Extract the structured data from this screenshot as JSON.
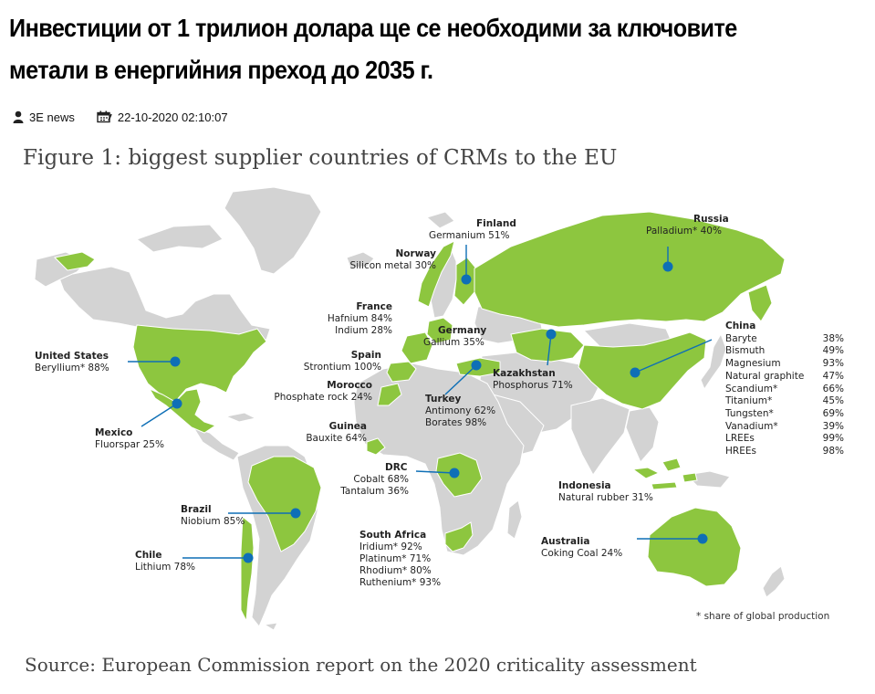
{
  "article": {
    "headline": "Инвестиции от 1 трилион долара ще се необходими за ключовите метали в енергийния преход до 2035 г.",
    "author": "3E news",
    "date": "22-10-2020 02:10:07",
    "author_icon": "user-icon",
    "date_icon": "calendar-icon"
  },
  "figure": {
    "title": "Figure 1: biggest supplier countries of CRMs to the EU",
    "source": "Source: European Commission report on the 2020 criticality assessment",
    "footnote": "* share of global production",
    "colors": {
      "supplier": "#8cc63f",
      "other_land": "#d0d0d0",
      "marker": "#0e6fb6",
      "leader": "#0e6fb6"
    },
    "suppliers": [
      {
        "id": "finland",
        "country": "Finland",
        "items": [
          "Germanium 51%"
        ]
      },
      {
        "id": "russia",
        "country": "Russia",
        "items": [
          "Palladium* 40%"
        ]
      },
      {
        "id": "norway",
        "country": "Norway",
        "items": [
          "Silicon metal 30%"
        ]
      },
      {
        "id": "france",
        "country": "France",
        "items": [
          "Hafnium 84%",
          "Indium 28%"
        ]
      },
      {
        "id": "germany",
        "country": "Germany",
        "items": [
          "Gallium 35%"
        ]
      },
      {
        "id": "spain",
        "country": "Spain",
        "items": [
          "Strontium 100%"
        ]
      },
      {
        "id": "morocco",
        "country": "Morocco",
        "items": [
          "Phosphate rock 24%"
        ]
      },
      {
        "id": "guinea",
        "country": "Guinea",
        "items": [
          "Bauxite 64%"
        ]
      },
      {
        "id": "kazakhstan",
        "country": "Kazakhstan",
        "items": [
          "Phosphorus 71%"
        ]
      },
      {
        "id": "turkey",
        "country": "Turkey",
        "items": [
          "Antimony 62%",
          "Borates 98%"
        ]
      },
      {
        "id": "united_states",
        "country": "United States",
        "items": [
          "Beryllium* 88%"
        ]
      },
      {
        "id": "mexico",
        "country": "Mexico",
        "items": [
          "Fluorspar 25%"
        ]
      },
      {
        "id": "drc",
        "country": "DRC",
        "items": [
          "Cobalt 68%",
          "Tantalum 36%"
        ]
      },
      {
        "id": "brazil",
        "country": "Brazil",
        "items": [
          "Niobium 85%"
        ]
      },
      {
        "id": "chile",
        "country": "Chile",
        "items": [
          "Lithium 78%"
        ]
      },
      {
        "id": "south_africa",
        "country": "South Africa",
        "items": [
          "Iridium* 92%",
          "Platinum* 71%",
          "Rhodium* 80%",
          "Ruthenium* 93%"
        ]
      },
      {
        "id": "indonesia",
        "country": "Indonesia",
        "items": [
          "Natural rubber 31%"
        ]
      },
      {
        "id": "australia",
        "country": "Australia",
        "items": [
          "Coking Coal 24%"
        ]
      }
    ],
    "china": {
      "country": "China",
      "rows": [
        {
          "material": "Baryte",
          "share": "38%"
        },
        {
          "material": "Bismuth",
          "share": "49%"
        },
        {
          "material": "Magnesium",
          "share": "93%"
        },
        {
          "material": "Natural graphite",
          "share": "47%"
        },
        {
          "material": "Scandium*",
          "share": "66%"
        },
        {
          "material": "Titanium*",
          "share": "45%"
        },
        {
          "material": "Tungsten*",
          "share": "69%"
        },
        {
          "material": "Vanadium*",
          "share": "39%"
        },
        {
          "material": "LREEs",
          "share": "99%"
        },
        {
          "material": "HREEs",
          "share": "98%"
        }
      ]
    }
  }
}
